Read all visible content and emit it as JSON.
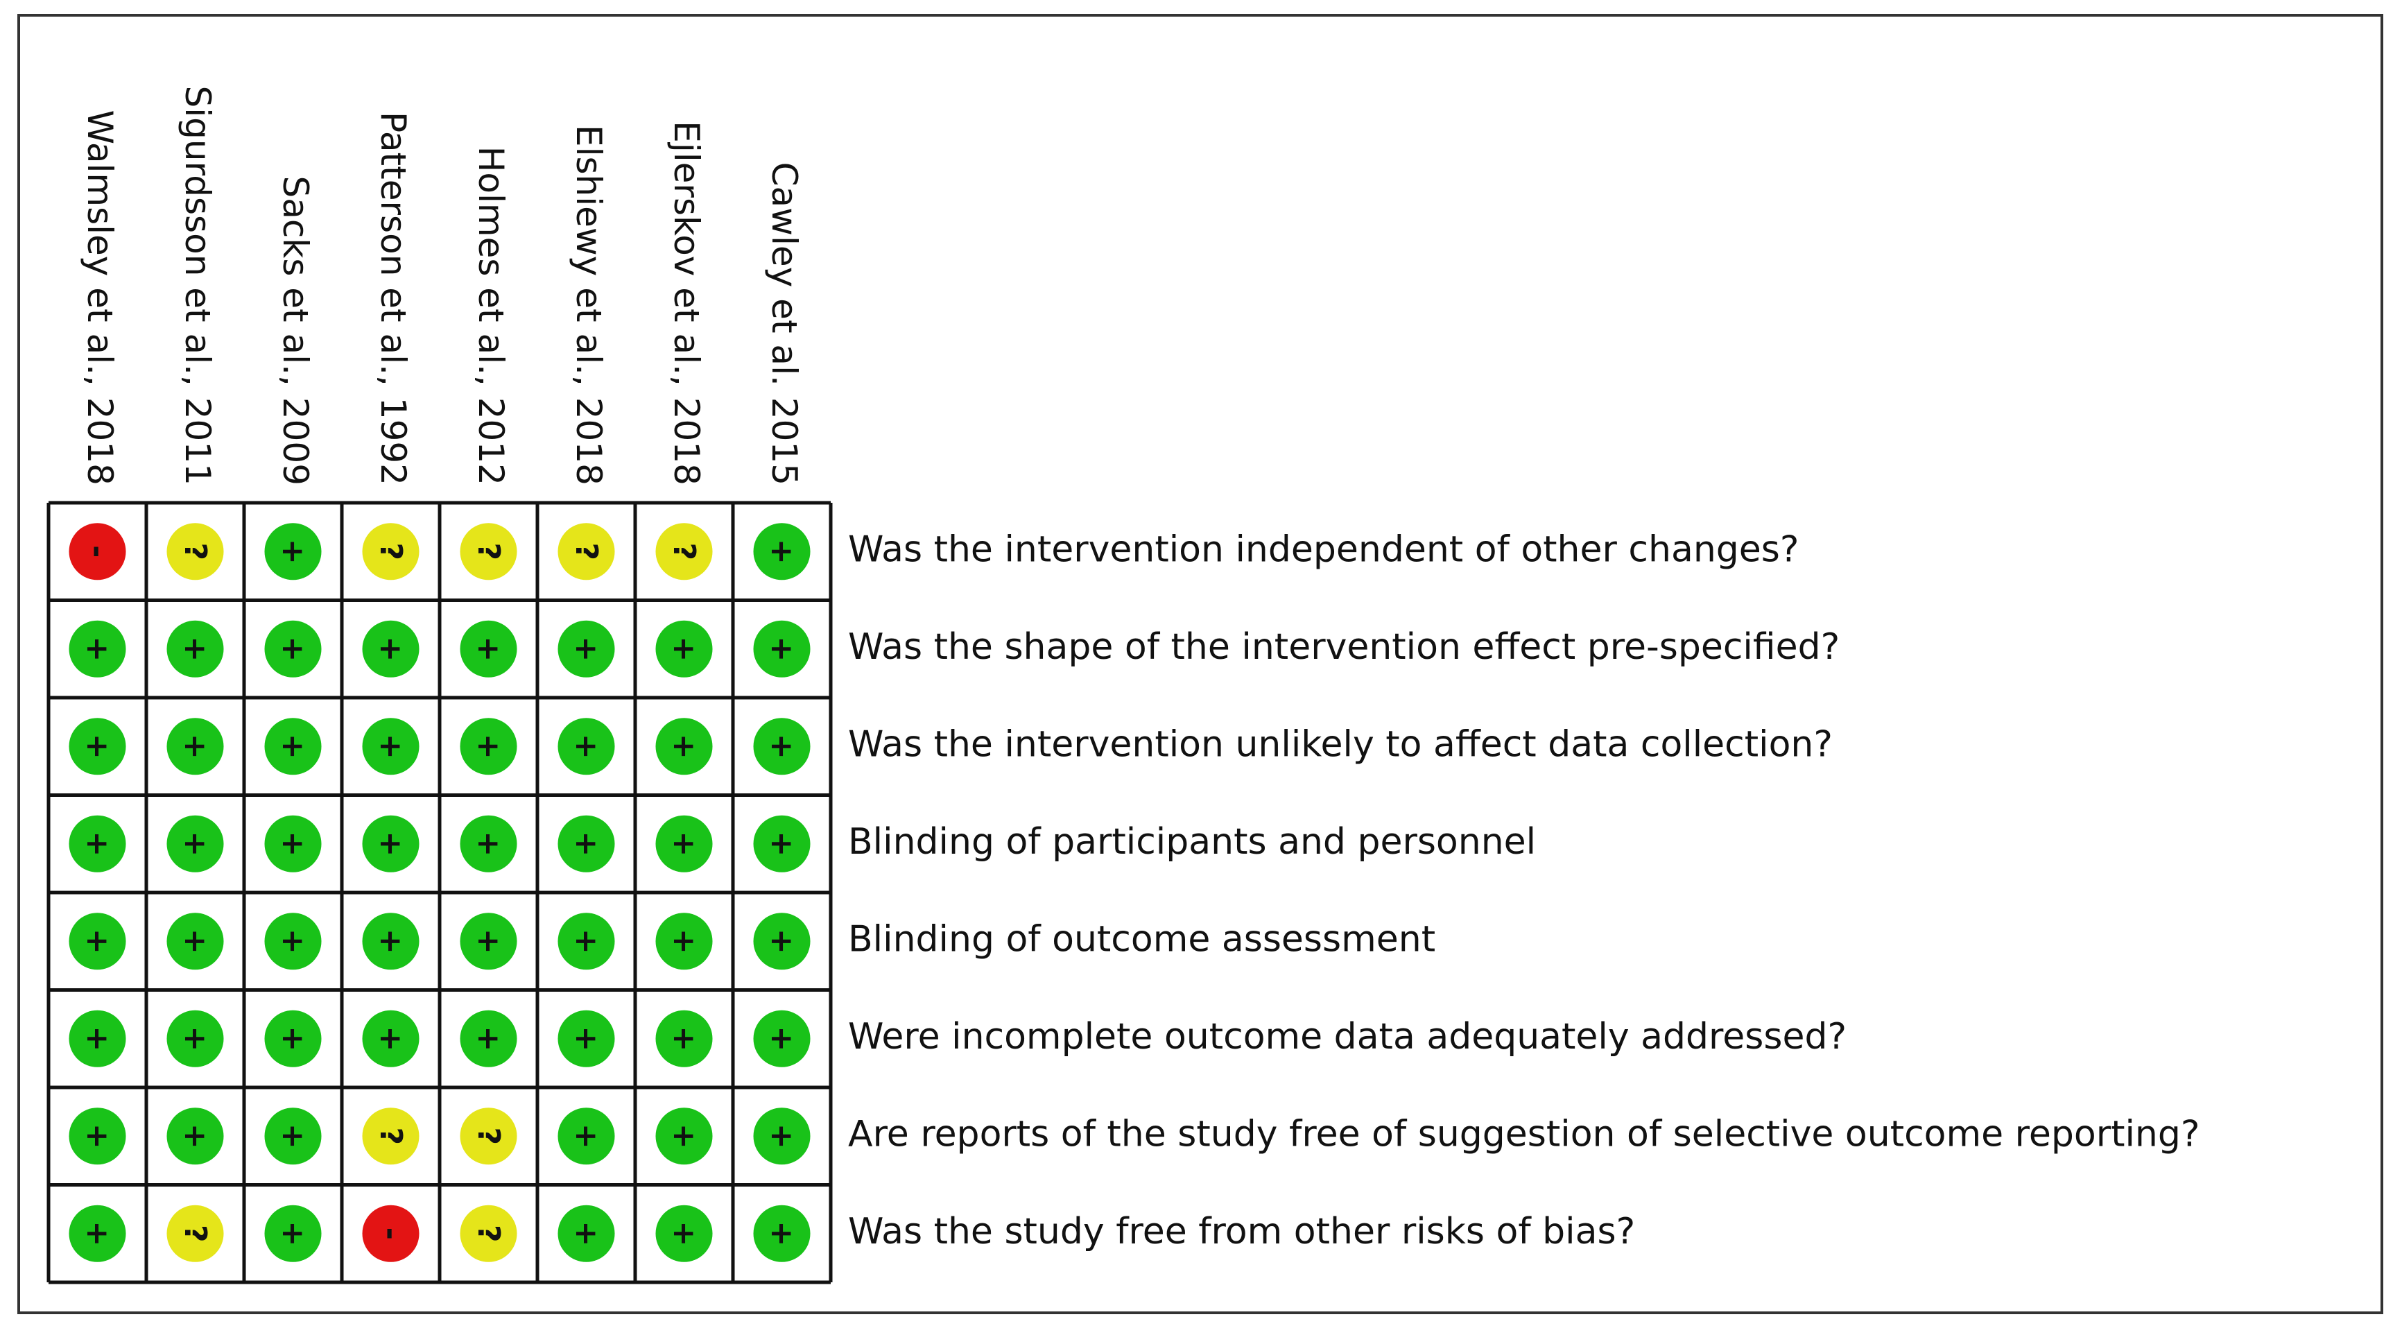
{
  "studies": [
    "Walmsley et al., 2018",
    "Sigurdsson et al., 2011",
    "Sacks et al., 2009",
    "Patterson et al., 1992",
    "Holmes et al., 2012",
    "Elshiewy et al., 2018",
    "Ejlerskov et al., 2018",
    "Cawley et al. 2015"
  ],
  "domains": [
    "Was the intervention independent of other changes?",
    "Was the shape of the intervention effect pre-specified?",
    "Was the intervention unlikely to affect data collection?",
    "Blinding of participants and personnel",
    "Blinding of outcome assessment",
    "Were incomplete outcome data adequately addressed?",
    "Are reports of the study free of suggestion of selective outcome reporting?",
    "Was the study free from other risks of bias?"
  ],
  "judgments": [
    [
      "-",
      "?",
      "+",
      "?",
      "?",
      "?",
      "?",
      "+"
    ],
    [
      "+",
      "+",
      "+",
      "+",
      "+",
      "+",
      "+",
      "+"
    ],
    [
      "+",
      "+",
      "+",
      "+",
      "+",
      "+",
      "+",
      "+"
    ],
    [
      "+",
      "+",
      "+",
      "+",
      "+",
      "+",
      "+",
      "+"
    ],
    [
      "+",
      "+",
      "+",
      "+",
      "+",
      "+",
      "+",
      "+"
    ],
    [
      "+",
      "+",
      "+",
      "+",
      "+",
      "+",
      "+",
      "+"
    ],
    [
      "+",
      "+",
      "+",
      "?",
      "?",
      "+",
      "+",
      "+"
    ],
    [
      "+",
      "?",
      "+",
      "-",
      "?",
      "+",
      "+",
      "+"
    ]
  ]
}
